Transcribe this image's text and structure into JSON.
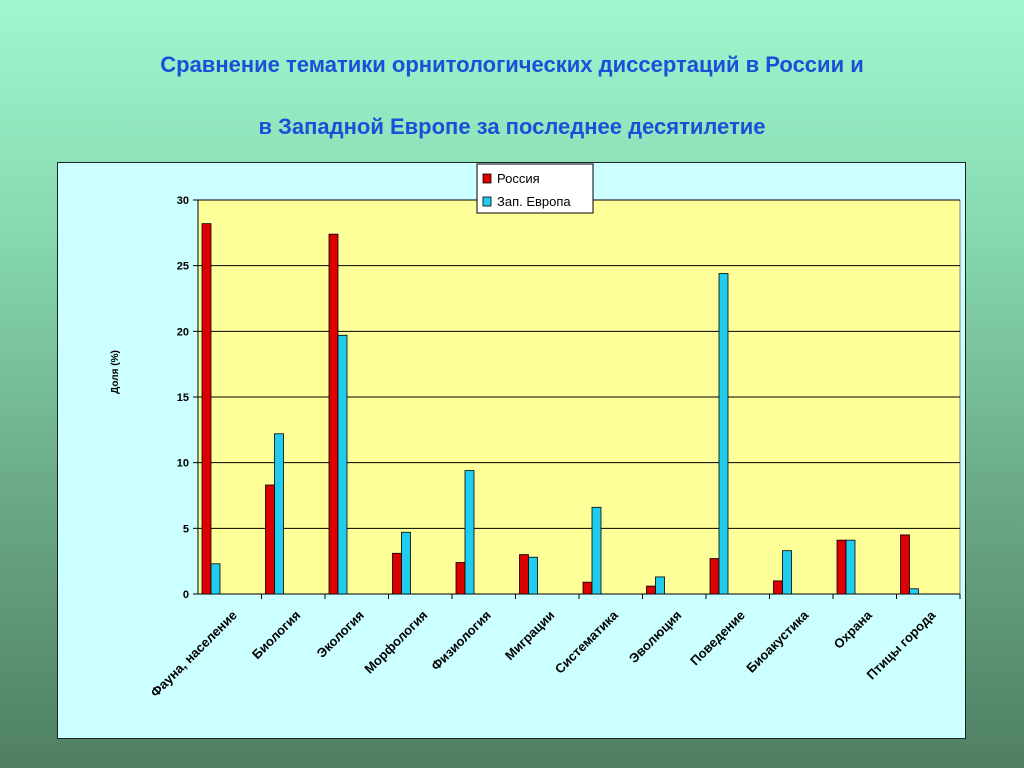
{
  "slide": {
    "title_line1": "Сравнение тематики орнитологических диссертаций в России и",
    "title_line2": "в Западной Европе за последнее десятилетие"
  },
  "colors": {
    "russia": "#dd0000",
    "europe": "#22ccee",
    "plot_bg": "#ffff99",
    "frame_bg": "#ccffff",
    "title": "#1a4fd8"
  },
  "chart_data": {
    "type": "bar",
    "title": "",
    "xlabel": "",
    "ylabel": "Доля (%)",
    "ylim": [
      0,
      30
    ],
    "yticks": [
      0,
      5,
      10,
      15,
      20,
      25,
      30
    ],
    "grid": true,
    "legend_position": "top-center",
    "categories": [
      "Фауна, население",
      "Биология",
      "Экология",
      "Морфология",
      "Физиология",
      "Миграции",
      "Систематика",
      "Эволюция",
      "Поведение",
      "Биоакустика",
      "Охрана",
      "Птицы города"
    ],
    "series": [
      {
        "name": "Россия",
        "values": [
          28.2,
          8.3,
          27.4,
          3.1,
          2.4,
          3.0,
          0.9,
          0.6,
          2.7,
          1.0,
          4.1,
          4.5
        ]
      },
      {
        "name": "Зап. Европа",
        "values": [
          2.3,
          12.2,
          19.7,
          4.7,
          9.4,
          2.8,
          6.6,
          1.3,
          24.4,
          3.3,
          4.1,
          0.4
        ]
      }
    ]
  }
}
